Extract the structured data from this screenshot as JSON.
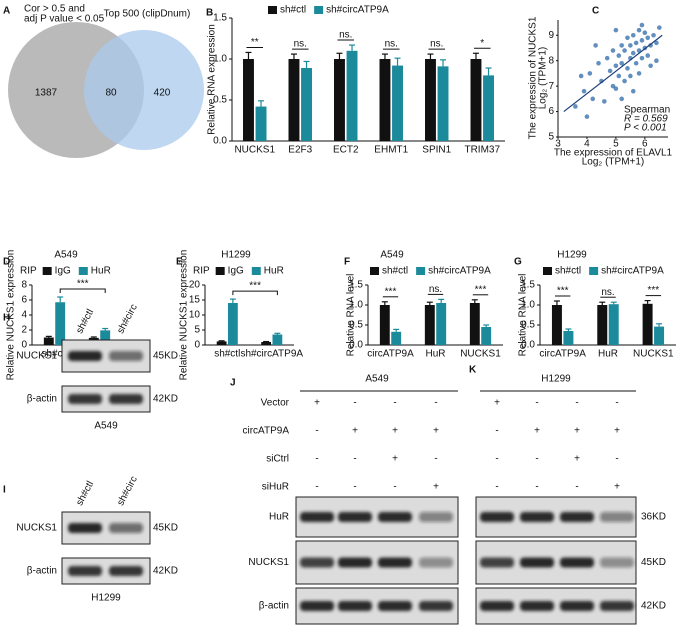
{
  "venn": {
    "panel": "A",
    "left_label": [
      "Cor > 0.5 and",
      "adj P value < 0.05"
    ],
    "right_label": "Top 500 (clipDnum)",
    "left_only": 1387,
    "overlap": 80,
    "right_only": 420
  },
  "chart_data": [
    {
      "panel": "B",
      "type": "bar",
      "categories": [
        "NUCKS1",
        "E2F3",
        "ECT2",
        "EHMT1",
        "SPIN1",
        "TRIM37"
      ],
      "series": [
        {
          "name": "sh#ctl",
          "color": "#111111",
          "values": [
            1,
            1,
            1,
            1,
            1,
            1
          ],
          "errors": [
            0.08,
            0.06,
            0.07,
            0.06,
            0.06,
            0.07
          ]
        },
        {
          "name": "sh#circATP9A",
          "color": "#1b8a9b",
          "values": [
            0.42,
            0.89,
            1.1,
            0.92,
            0.91,
            0.8
          ],
          "errors": [
            0.07,
            0.08,
            0.07,
            0.09,
            0.08,
            0.09
          ]
        }
      ],
      "significance": [
        "**",
        "ns.",
        "ns.",
        "ns.",
        "ns.",
        "*"
      ],
      "y_label": "Relative RNA expression",
      "ylim": [
        0,
        1.5
      ],
      "yticks": [
        {
          "value": 0,
          "label": "0.0"
        },
        {
          "value": 0.5,
          "label": "0.5"
        },
        {
          "value": 1,
          "label": "1.0"
        },
        {
          "value": 1.5,
          "label": "1.5"
        }
      ]
    },
    {
      "panel": "C",
      "type": "scatter",
      "color": "#2d6aa8",
      "x": [
        3.6,
        3.9,
        4.1,
        4.2,
        4.4,
        4.5,
        4.6,
        4.7,
        4.8,
        4.9,
        4.9,
        5.0,
        5.0,
        5.1,
        5.1,
        5.2,
        5.2,
        5.3,
        5.3,
        5.4,
        5.4,
        5.5,
        5.5,
        5.5,
        5.6,
        5.6,
        5.7,
        5.7,
        5.8,
        5.8,
        5.9,
        5.9,
        6.0,
        6.0,
        6.1,
        6.1,
        6.2,
        6.3,
        6.4,
        6.5,
        5.6,
        5.2,
        4.3,
        5.8,
        6.2,
        3.8,
        4.0,
        5.0,
        6.4,
        5.9
      ],
      "y": [
        6.2,
        6.8,
        7.5,
        6.5,
        7.9,
        7.2,
        6.4,
        8.1,
        7.6,
        7.0,
        8.4,
        7.8,
        6.9,
        8.2,
        7.4,
        8.6,
        7.9,
        7.2,
        8.4,
        8.9,
        7.7,
        8.1,
        8.6,
        7.4,
        9.0,
        8.3,
        7.9,
        8.7,
        8.4,
        9.2,
        8.1,
        8.8,
        8.5,
        9.1,
        8.2,
        8.9,
        8.6,
        9.0,
        8.7,
        9.3,
        6.8,
        6.5,
        8.6,
        7.5,
        7.8,
        7.4,
        5.8,
        9.2,
        8.0,
        9.4
      ],
      "trend_line": {
        "x": [
          3.2,
          6.6
        ],
        "y": [
          6.0,
          9.0
        ]
      },
      "x_label": [
        "The expression of ELAVL1",
        "Log₂ (TPM+1)"
      ],
      "y_label": [
        "The expression of NUCKS1",
        "Log₂ (TPM+1)"
      ],
      "annotation": [
        "Spearman",
        "R = 0.569",
        "P < 0.001"
      ],
      "xlim": [
        3,
        6.8
      ],
      "ylim": [
        5,
        9.6
      ],
      "xticks": [
        3,
        4,
        5,
        6
      ],
      "yticks": [
        5,
        6,
        7,
        8,
        9
      ]
    },
    {
      "panel": "D",
      "type": "bar",
      "title": "A549",
      "legend_title": "RIP",
      "categories": [
        "sh#ctl",
        "sh#circATP9A"
      ],
      "series": [
        {
          "name": "IgG",
          "color": "#111111",
          "values": [
            1.0,
            0.95
          ],
          "errors": [
            0.15,
            0.12
          ]
        },
        {
          "name": "HuR",
          "color": "#1b8a9b",
          "values": [
            5.7,
            1.95
          ],
          "errors": [
            0.7,
            0.25
          ]
        }
      ],
      "significance": [
        "***"
      ],
      "y_label": "Relative NUCKS1 expression",
      "ylim": [
        0,
        8
      ],
      "yticks": [
        0,
        2,
        4,
        6,
        8
      ]
    },
    {
      "panel": "E",
      "type": "bar",
      "title": "H1299",
      "legend_title": "RIP",
      "categories": [
        "sh#ctl",
        "sh#circATP9A"
      ],
      "series": [
        {
          "name": "IgG",
          "color": "#111111",
          "values": [
            1.2,
            1.0
          ],
          "errors": [
            0.2,
            0.15
          ]
        },
        {
          "name": "HuR",
          "color": "#1b8a9b",
          "values": [
            14,
            3.5
          ],
          "errors": [
            1.3,
            0.4
          ]
        }
      ],
      "significance": [
        "***"
      ],
      "y_label": "Relative NUCKS1 expression",
      "ylim": [
        0,
        20
      ],
      "yticks": [
        0,
        5,
        10,
        15,
        20
      ]
    },
    {
      "panel": "F",
      "type": "bar",
      "title": "A549",
      "categories": [
        "circATP9A",
        "HuR",
        "NUCKS1"
      ],
      "series": [
        {
          "name": "sh#ctl",
          "color": "#111111",
          "values": [
            1.0,
            1.0,
            1.05
          ],
          "errors": [
            0.08,
            0.07,
            0.08
          ]
        },
        {
          "name": "sh#circATP9A",
          "color": "#1b8a9b",
          "values": [
            0.33,
            1.05,
            0.45
          ],
          "errors": [
            0.06,
            0.09,
            0.05
          ]
        }
      ],
      "significance": [
        "***",
        "ns.",
        "***"
      ],
      "y_label": "Relative RNA level",
      "ylim": [
        0,
        1.5
      ],
      "yticks": [
        {
          "value": 0,
          "label": "0.0"
        },
        {
          "value": 0.5,
          "label": "0.5"
        },
        {
          "value": 1,
          "label": "1.0"
        },
        {
          "value": 1.5,
          "label": "1.5"
        }
      ]
    },
    {
      "panel": "G",
      "type": "bar",
      "title": "H1299",
      "categories": [
        "circATP9A",
        "HuR",
        "NUCKS1"
      ],
      "series": [
        {
          "name": "sh#ctl",
          "color": "#111111",
          "values": [
            1.0,
            1.0,
            1.03
          ],
          "errors": [
            0.1,
            0.07,
            0.08
          ]
        },
        {
          "name": "sh#circATP9A",
          "color": "#1b8a9b",
          "values": [
            0.35,
            1.02,
            0.46
          ],
          "errors": [
            0.05,
            0.05,
            0.07
          ]
        }
      ],
      "significance": [
        "***",
        "ns.",
        "***"
      ],
      "y_label": "Relative RNA level",
      "ylim": [
        0,
        1.5
      ],
      "yticks": [
        {
          "value": 0,
          "label": "0.0"
        },
        {
          "value": 0.5,
          "label": "0.5"
        },
        {
          "value": 1,
          "label": "1.0"
        },
        {
          "value": 1.5,
          "label": "1.5"
        }
      ]
    }
  ],
  "knockdown_blots": [
    {
      "panel": "H",
      "lanes": [
        "sh#ctl",
        "sh#circ"
      ],
      "proteins": [
        "NUCKS1",
        "β-actin"
      ],
      "sizes": [
        "45KD",
        "42KD"
      ],
      "cell_line": "A549"
    },
    {
      "panel": "I",
      "lanes": [
        "sh#ctl",
        "sh#circ"
      ],
      "proteins": [
        "NUCKS1",
        "β-actin"
      ],
      "sizes": [
        "45KD",
        "42KD"
      ],
      "cell_line": "H1299"
    }
  ],
  "rescue_blots": {
    "conditions": [
      "Vector",
      "circATP9A",
      "siCtrl",
      "siHuR"
    ],
    "proteins": [
      "HuR",
      "NUCKS1",
      "β-actin"
    ],
    "panels": [
      {
        "panel": "J",
        "cell_line": "A549",
        "treatments": [
          [
            "+",
            "-",
            "-",
            "-"
          ],
          [
            "-",
            "+",
            "+",
            "+"
          ],
          [
            "-",
            "-",
            "+",
            "-"
          ],
          [
            "-",
            "-",
            "-",
            "+"
          ]
        ]
      },
      {
        "panel": "K",
        "cell_line": "H1299",
        "treatments": [
          [
            "+",
            "-",
            "-",
            "-"
          ],
          [
            "-",
            "+",
            "+",
            "+"
          ],
          [
            "-",
            "-",
            "+",
            "-"
          ],
          [
            "-",
            "-",
            "-",
            "+"
          ]
        ],
        "sizes": [
          "36KD",
          "45KD",
          "42KD"
        ]
      }
    ]
  }
}
